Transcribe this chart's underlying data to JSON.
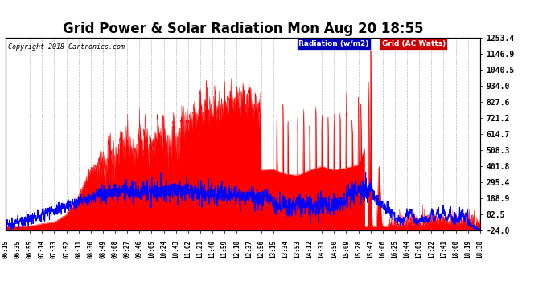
{
  "title": "Grid Power & Solar Radiation Mon Aug 20 18:55",
  "copyright": "Copyright 2018 Cartronics.com",
  "ylabel_right_ticks": [
    -24.0,
    82.5,
    188.9,
    295.4,
    401.8,
    508.3,
    614.7,
    721.2,
    827.6,
    934.0,
    1040.5,
    1146.9,
    1253.4
  ],
  "ymin": -24.0,
  "ymax": 1253.4,
  "legend_radiation_label": "Radiation (w/m2)",
  "legend_grid_label": "Grid (AC Watts)",
  "legend_radiation_bg": "#0000bb",
  "legend_grid_bg": "#cc0000",
  "background_color": "#ffffff",
  "plot_bg_color": "#ffffff",
  "grid_color": "#bbbbbb",
  "title_fontsize": 12,
  "tick_labels_x": [
    "06:15",
    "06:35",
    "06:55",
    "07:14",
    "07:33",
    "07:52",
    "08:11",
    "08:30",
    "08:49",
    "09:08",
    "09:27",
    "09:46",
    "10:05",
    "10:24",
    "10:43",
    "11:02",
    "11:21",
    "11:40",
    "11:59",
    "12:18",
    "12:37",
    "12:56",
    "13:15",
    "13:34",
    "13:53",
    "14:12",
    "14:31",
    "14:50",
    "15:09",
    "15:28",
    "15:47",
    "16:06",
    "16:25",
    "16:44",
    "17:03",
    "17:22",
    "17:41",
    "18:00",
    "18:19",
    "18:38"
  ],
  "n_xticks": 40
}
